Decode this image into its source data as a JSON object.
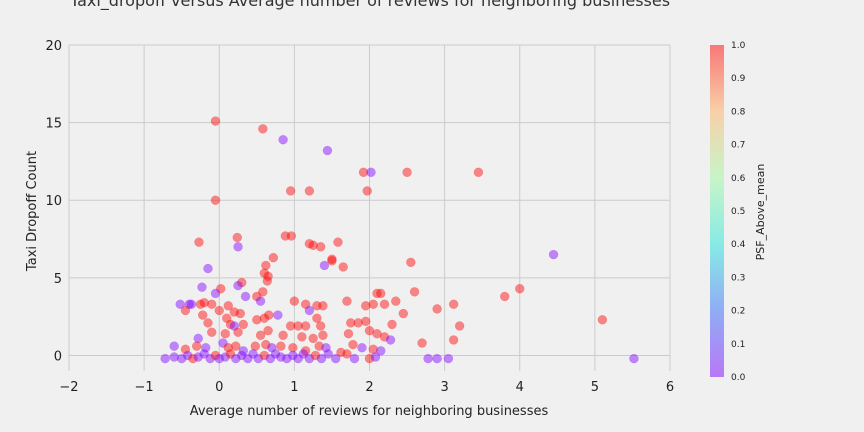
{
  "chart_data": {
    "type": "scatter",
    "title": "Taxi_dropoff versus Average number of reviews for neighboring businesses",
    "xlabel": "Average number of reviews for neighboring businesses",
    "ylabel": "Taxi Dropoff Count",
    "xlim": [
      -2,
      6
    ],
    "ylim": [
      -1,
      20
    ],
    "xticks": [
      -2,
      -1,
      0,
      1,
      2,
      3,
      4,
      5,
      6
    ],
    "yticks": [
      0,
      5,
      10,
      15,
      20
    ],
    "grid": true,
    "colorbar": {
      "label": "PSF_Above_mean",
      "range": [
        0,
        1
      ],
      "ticks": [
        "0.0",
        "0.1",
        "0.2",
        "0.3",
        "0.4",
        "0.5",
        "0.6",
        "0.7",
        "0.8",
        "0.9",
        "1.0"
      ],
      "colormap": "rainbow"
    },
    "points": [
      {
        "x": -0.05,
        "y": 15.1,
        "c": 1
      },
      {
        "x": 0.58,
        "y": 14.6,
        "c": 1
      },
      {
        "x": 0.85,
        "y": 13.9,
        "c": 0
      },
      {
        "x": 1.44,
        "y": 13.2,
        "c": 0
      },
      {
        "x": 1.92,
        "y": 11.8,
        "c": 1
      },
      {
        "x": 2.02,
        "y": 11.8,
        "c": 0
      },
      {
        "x": 2.5,
        "y": 11.8,
        "c": 1
      },
      {
        "x": 3.45,
        "y": 11.8,
        "c": 1
      },
      {
        "x": 0.95,
        "y": 10.6,
        "c": 1
      },
      {
        "x": 1.2,
        "y": 10.6,
        "c": 1
      },
      {
        "x": 1.97,
        "y": 10.6,
        "c": 1
      },
      {
        "x": -0.05,
        "y": 10.0,
        "c": 1
      },
      {
        "x": 0.88,
        "y": 7.7,
        "c": 1
      },
      {
        "x": 0.96,
        "y": 7.7,
        "c": 1
      },
      {
        "x": 0.24,
        "y": 7.6,
        "c": 1
      },
      {
        "x": -0.27,
        "y": 7.3,
        "c": 1
      },
      {
        "x": 1.2,
        "y": 7.2,
        "c": 1
      },
      {
        "x": 1.25,
        "y": 7.1,
        "c": 1
      },
      {
        "x": 1.35,
        "y": 7.0,
        "c": 1
      },
      {
        "x": 1.58,
        "y": 7.3,
        "c": 1
      },
      {
        "x": 0.25,
        "y": 7.0,
        "c": 0
      },
      {
        "x": 0.72,
        "y": 6.3,
        "c": 1
      },
      {
        "x": 1.5,
        "y": 6.1,
        "c": 1
      },
      {
        "x": 1.5,
        "y": 6.2,
        "c": 1
      },
      {
        "x": 2.55,
        "y": 6.0,
        "c": 1
      },
      {
        "x": 4.45,
        "y": 6.5,
        "c": 0
      },
      {
        "x": -0.15,
        "y": 5.6,
        "c": 0
      },
      {
        "x": 0.62,
        "y": 5.8,
        "c": 1
      },
      {
        "x": 0.6,
        "y": 5.3,
        "c": 1
      },
      {
        "x": 0.65,
        "y": 5.1,
        "c": 1
      },
      {
        "x": 0.64,
        "y": 4.8,
        "c": 1
      },
      {
        "x": 1.4,
        "y": 5.8,
        "c": 0
      },
      {
        "x": 1.65,
        "y": 5.7,
        "c": 1
      },
      {
        "x": -0.23,
        "y": 4.4,
        "c": 0
      },
      {
        "x": 0.02,
        "y": 4.3,
        "c": 1
      },
      {
        "x": 0.3,
        "y": 4.7,
        "c": 1
      },
      {
        "x": 0.25,
        "y": 4.5,
        "c": 0
      },
      {
        "x": 0.58,
        "y": 4.1,
        "c": 1
      },
      {
        "x": 0.5,
        "y": 3.8,
        "c": 1
      },
      {
        "x": 0.35,
        "y": 3.8,
        "c": 0
      },
      {
        "x": -0.05,
        "y": 4.0,
        "c": 0
      },
      {
        "x": 2.1,
        "y": 4.0,
        "c": 1
      },
      {
        "x": 2.15,
        "y": 4.0,
        "c": 1
      },
      {
        "x": 2.6,
        "y": 4.1,
        "c": 1
      },
      {
        "x": 3.8,
        "y": 3.8,
        "c": 1
      },
      {
        "x": 4.0,
        "y": 4.3,
        "c": 1
      },
      {
        "x": -0.52,
        "y": 3.3,
        "c": 0
      },
      {
        "x": -0.4,
        "y": 3.3,
        "c": 0
      },
      {
        "x": -0.37,
        "y": 3.3,
        "c": 0
      },
      {
        "x": -0.25,
        "y": 3.3,
        "c": 1
      },
      {
        "x": -0.2,
        "y": 3.4,
        "c": 1
      },
      {
        "x": -0.1,
        "y": 3.3,
        "c": 1
      },
      {
        "x": 0.0,
        "y": 2.9,
        "c": 1
      },
      {
        "x": 0.12,
        "y": 3.2,
        "c": 1
      },
      {
        "x": 0.2,
        "y": 2.8,
        "c": 1
      },
      {
        "x": 0.28,
        "y": 2.7,
        "c": 1
      },
      {
        "x": 0.55,
        "y": 3.5,
        "c": 0
      },
      {
        "x": 0.66,
        "y": 2.6,
        "c": 1
      },
      {
        "x": 0.78,
        "y": 2.6,
        "c": 0
      },
      {
        "x": 1.0,
        "y": 3.5,
        "c": 1
      },
      {
        "x": 1.15,
        "y": 3.3,
        "c": 1
      },
      {
        "x": 1.3,
        "y": 3.2,
        "c": 1
      },
      {
        "x": 1.38,
        "y": 3.2,
        "c": 1
      },
      {
        "x": 1.7,
        "y": 3.5,
        "c": 1
      },
      {
        "x": 1.95,
        "y": 3.2,
        "c": 1
      },
      {
        "x": 2.05,
        "y": 3.3,
        "c": 1
      },
      {
        "x": 2.2,
        "y": 3.3,
        "c": 1
      },
      {
        "x": 2.35,
        "y": 3.5,
        "c": 1
      },
      {
        "x": 2.45,
        "y": 2.7,
        "c": 1
      },
      {
        "x": 2.9,
        "y": 3.0,
        "c": 1
      },
      {
        "x": 3.12,
        "y": 3.3,
        "c": 1
      },
      {
        "x": -0.45,
        "y": 2.9,
        "c": 1
      },
      {
        "x": -0.22,
        "y": 2.6,
        "c": 1
      },
      {
        "x": 0.1,
        "y": 2.4,
        "c": 1
      },
      {
        "x": 0.5,
        "y": 2.3,
        "c": 1
      },
      {
        "x": 0.6,
        "y": 2.4,
        "c": 1
      },
      {
        "x": 1.2,
        "y": 2.9,
        "c": 0
      },
      {
        "x": 1.3,
        "y": 2.4,
        "c": 1
      },
      {
        "x": 1.75,
        "y": 2.1,
        "c": 1
      },
      {
        "x": 1.85,
        "y": 2.1,
        "c": 1
      },
      {
        "x": 1.95,
        "y": 2.2,
        "c": 1
      },
      {
        "x": 2.3,
        "y": 2.0,
        "c": 1
      },
      {
        "x": 3.2,
        "y": 1.9,
        "c": 1
      },
      {
        "x": 5.1,
        "y": 2.3,
        "c": 1
      },
      {
        "x": -0.15,
        "y": 2.1,
        "c": 1
      },
      {
        "x": 0.15,
        "y": 2.0,
        "c": 1
      },
      {
        "x": 0.2,
        "y": 1.9,
        "c": 0
      },
      {
        "x": 0.32,
        "y": 2.0,
        "c": 1
      },
      {
        "x": 0.95,
        "y": 1.9,
        "c": 1
      },
      {
        "x": 1.05,
        "y": 1.9,
        "c": 1
      },
      {
        "x": 1.15,
        "y": 1.9,
        "c": 1
      },
      {
        "x": 1.35,
        "y": 1.9,
        "c": 1
      },
      {
        "x": 2.0,
        "y": 1.6,
        "c": 1
      },
      {
        "x": -0.28,
        "y": 1.1,
        "c": 0
      },
      {
        "x": -0.1,
        "y": 1.5,
        "c": 1
      },
      {
        "x": 0.08,
        "y": 1.4,
        "c": 1
      },
      {
        "x": 0.25,
        "y": 1.5,
        "c": 1
      },
      {
        "x": 0.55,
        "y": 1.3,
        "c": 1
      },
      {
        "x": 0.65,
        "y": 1.6,
        "c": 1
      },
      {
        "x": 0.85,
        "y": 1.3,
        "c": 1
      },
      {
        "x": 1.1,
        "y": 1.2,
        "c": 1
      },
      {
        "x": 1.25,
        "y": 1.1,
        "c": 1
      },
      {
        "x": 1.38,
        "y": 1.3,
        "c": 1
      },
      {
        "x": 1.72,
        "y": 1.4,
        "c": 1
      },
      {
        "x": 2.1,
        "y": 1.4,
        "c": 1
      },
      {
        "x": 2.2,
        "y": 1.2,
        "c": 1
      },
      {
        "x": 2.28,
        "y": 1.0,
        "c": 0
      },
      {
        "x": 2.7,
        "y": 0.8,
        "c": 1
      },
      {
        "x": 3.12,
        "y": 1.0,
        "c": 1
      },
      {
        "x": -0.6,
        "y": 0.6,
        "c": 0
      },
      {
        "x": -0.45,
        "y": 0.4,
        "c": 1
      },
      {
        "x": -0.3,
        "y": 0.6,
        "c": 1
      },
      {
        "x": -0.18,
        "y": 0.5,
        "c": 0
      },
      {
        "x": 0.05,
        "y": 0.8,
        "c": 0
      },
      {
        "x": 0.12,
        "y": 0.5,
        "c": 1
      },
      {
        "x": 0.22,
        "y": 0.6,
        "c": 1
      },
      {
        "x": 0.32,
        "y": 0.3,
        "c": 0
      },
      {
        "x": 0.48,
        "y": 0.6,
        "c": 1
      },
      {
        "x": 0.62,
        "y": 0.7,
        "c": 1
      },
      {
        "x": 0.7,
        "y": 0.5,
        "c": 0
      },
      {
        "x": 0.82,
        "y": 0.6,
        "c": 1
      },
      {
        "x": 0.98,
        "y": 0.5,
        "c": 1
      },
      {
        "x": 1.15,
        "y": 0.3,
        "c": 1
      },
      {
        "x": 1.33,
        "y": 0.6,
        "c": 1
      },
      {
        "x": 1.42,
        "y": 0.5,
        "c": 0
      },
      {
        "x": 1.62,
        "y": 0.2,
        "c": 1
      },
      {
        "x": 1.78,
        "y": 0.7,
        "c": 1
      },
      {
        "x": 1.9,
        "y": 0.5,
        "c": 0
      },
      {
        "x": 2.05,
        "y": 0.4,
        "c": 1
      },
      {
        "x": 2.15,
        "y": 0.3,
        "c": 0
      },
      {
        "x": 1.7,
        "y": 0.1,
        "c": 1
      },
      {
        "x": -0.72,
        "y": -0.2,
        "c": 0
      },
      {
        "x": -0.6,
        "y": -0.1,
        "c": 0
      },
      {
        "x": -0.5,
        "y": -0.2,
        "c": 0
      },
      {
        "x": -0.42,
        "y": 0.0,
        "c": 0
      },
      {
        "x": -0.35,
        "y": -0.2,
        "c": 1
      },
      {
        "x": -0.28,
        "y": -0.1,
        "c": 0
      },
      {
        "x": -0.2,
        "y": 0.1,
        "c": 0
      },
      {
        "x": -0.12,
        "y": -0.2,
        "c": 0
      },
      {
        "x": -0.05,
        "y": 0.0,
        "c": 1
      },
      {
        "x": 0.0,
        "y": -0.2,
        "c": 0
      },
      {
        "x": 0.08,
        "y": -0.1,
        "c": 0
      },
      {
        "x": 0.15,
        "y": 0.1,
        "c": 1
      },
      {
        "x": 0.22,
        "y": -0.2,
        "c": 0
      },
      {
        "x": 0.3,
        "y": 0.0,
        "c": 0
      },
      {
        "x": 0.38,
        "y": -0.2,
        "c": 0
      },
      {
        "x": 0.45,
        "y": 0.1,
        "c": 0
      },
      {
        "x": 0.52,
        "y": -0.2,
        "c": 0
      },
      {
        "x": 0.6,
        "y": 0.0,
        "c": 1
      },
      {
        "x": 0.68,
        "y": -0.2,
        "c": 0
      },
      {
        "x": 0.75,
        "y": 0.1,
        "c": 0
      },
      {
        "x": 0.82,
        "y": -0.1,
        "c": 0
      },
      {
        "x": 0.9,
        "y": -0.2,
        "c": 0
      },
      {
        "x": 0.98,
        "y": 0.0,
        "c": 0
      },
      {
        "x": 1.05,
        "y": -0.2,
        "c": 0
      },
      {
        "x": 1.12,
        "y": 0.1,
        "c": 0
      },
      {
        "x": 1.2,
        "y": -0.2,
        "c": 0
      },
      {
        "x": 1.28,
        "y": 0.0,
        "c": 1
      },
      {
        "x": 1.36,
        "y": -0.2,
        "c": 0
      },
      {
        "x": 1.45,
        "y": 0.1,
        "c": 0
      },
      {
        "x": 1.55,
        "y": -0.2,
        "c": 0
      },
      {
        "x": 1.8,
        "y": -0.2,
        "c": 0
      },
      {
        "x": 2.0,
        "y": -0.2,
        "c": 1
      },
      {
        "x": 2.08,
        "y": -0.1,
        "c": 0
      },
      {
        "x": 2.78,
        "y": -0.2,
        "c": 0
      },
      {
        "x": 2.9,
        "y": -0.2,
        "c": 0
      },
      {
        "x": 3.05,
        "y": -0.2,
        "c": 0
      },
      {
        "x": 5.52,
        "y": -0.2,
        "c": 0
      }
    ]
  }
}
